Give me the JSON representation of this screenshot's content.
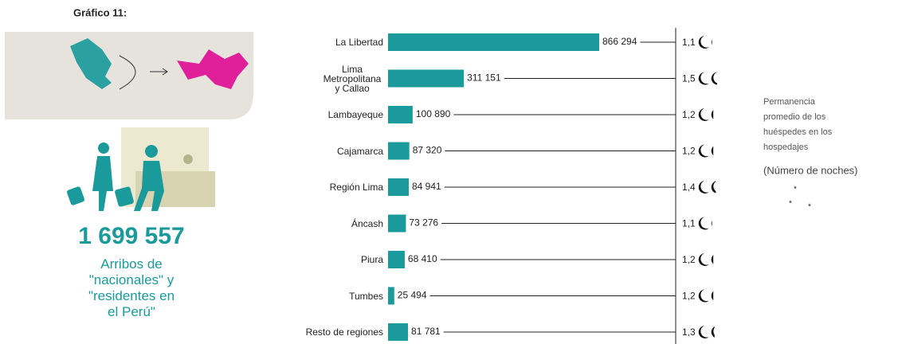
{
  "header": {
    "title": "Gráfico 11:"
  },
  "summary": {
    "total": "1 699 557",
    "caption": [
      "Arribos de",
      "\"nacionales\" y",
      "\"residentes en",
      "el Perú\""
    ]
  },
  "legend": {
    "lines": [
      "Permanencia",
      "promedio de los",
      "huéspedes en los",
      "hospedajes"
    ],
    "unit": "(Número de noches)"
  },
  "chart_data": {
    "type": "bar",
    "orientation": "horizontal",
    "color": "#1a9a9a",
    "categories": [
      "La Libertad",
      "Lima Metropolitana y Callao",
      "Lambayeque",
      "Cajamarca",
      "Región Lima",
      "Áncash",
      "Piura",
      "Tumbes",
      "Resto de regiones"
    ],
    "values": [
      866294,
      311151,
      100890,
      87320,
      84941,
      73276,
      68410,
      25494,
      81781
    ],
    "value_labels": [
      "866 294",
      "311 151",
      "100 890",
      "87 320",
      "84 941",
      "73 276",
      "68 410",
      "25 494",
      "81 781"
    ],
    "stays": [
      1.1,
      1.5,
      1.2,
      1.2,
      1.4,
      1.1,
      1.2,
      1.2,
      1.3
    ],
    "stay_labels": [
      "1,1",
      "1,5",
      "1,2",
      "1,2",
      "1,4",
      "1,1",
      "1,2",
      "1,2",
      "1,3"
    ]
  }
}
